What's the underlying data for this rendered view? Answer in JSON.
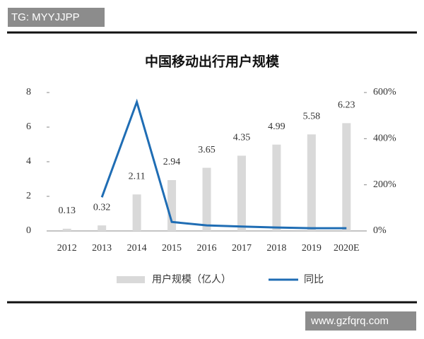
{
  "chart_data": {
    "type": "bar",
    "title": "中国移动出行用户规模",
    "categories": [
      "2012",
      "2013",
      "2014",
      "2015",
      "2016",
      "2017",
      "2018",
      "2019",
      "2020E"
    ],
    "series": [
      {
        "name": "用户规模（亿人）",
        "color": "#d9d9d9",
        "type": "bar",
        "values": [
          0.13,
          0.32,
          2.11,
          2.94,
          3.65,
          4.35,
          4.99,
          5.58,
          6.23
        ]
      },
      {
        "name": "同比",
        "color": "#1f6db4",
        "type": "line",
        "axis": "y2",
        "values": [
          null,
          146,
          559,
          39,
          24,
          19,
          15,
          12,
          12
        ]
      }
    ],
    "ylim": [
      0,
      8
    ],
    "yticks": [
      0,
      2,
      4,
      6,
      8
    ],
    "y2lim": [
      0,
      600
    ],
    "y2ticks": [
      {
        "value": 0,
        "label": "0%"
      },
      {
        "value": 200,
        "label": "200%"
      },
      {
        "value": 400,
        "label": "400%"
      },
      {
        "value": 600,
        "label": "600%"
      }
    ],
    "legend": "bottom"
  },
  "overlays": {
    "top_left": "TG: MYYJJPP",
    "bottom_right": "www.gzfqrq.com"
  }
}
